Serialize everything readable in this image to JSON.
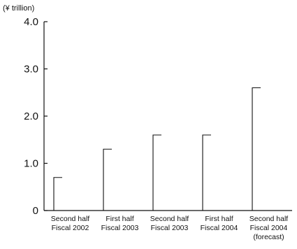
{
  "chart_data": {
    "type": "bar",
    "title": "",
    "unit_label": "(¥ trillion)",
    "xlabel": "",
    "ylabel": "",
    "ylim": [
      0,
      4.0
    ],
    "yticks": [
      "0",
      "1.0",
      "2.0",
      "3.0",
      "4.0"
    ],
    "ytick_values": [
      0,
      1,
      2,
      3,
      4
    ],
    "categories": [
      [
        "Second half",
        "Fiscal 2002"
      ],
      [
        "First half",
        "Fiscal 2003"
      ],
      [
        "Second half",
        "Fiscal 2003"
      ],
      [
        "First half",
        "Fiscal 2004"
      ],
      [
        "Second half",
        "Fiscal 2004",
        "(forecast)"
      ]
    ],
    "values": [
      0.7,
      1.3,
      1.6,
      1.6,
      2.6
    ],
    "grid": false,
    "legend": "none",
    "colors": {
      "axis": "#111111",
      "bar_outline": "#111111",
      "background": "#ffffff"
    }
  }
}
